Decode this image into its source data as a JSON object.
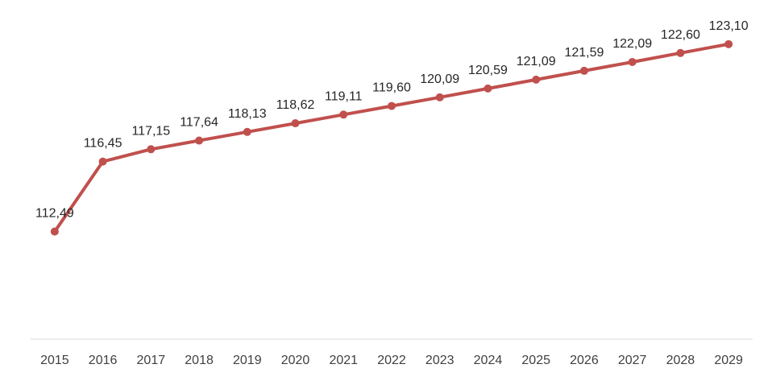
{
  "chart_data": {
    "type": "line",
    "title": "",
    "xlabel": "",
    "ylabel": "",
    "categories": [
      "2015",
      "2016",
      "2017",
      "2018",
      "2019",
      "2020",
      "2021",
      "2022",
      "2023",
      "2024",
      "2025",
      "2026",
      "2027",
      "2028",
      "2029"
    ],
    "series": [
      {
        "values": [
          112.49,
          116.45,
          117.15,
          117.64,
          118.13,
          118.62,
          119.11,
          119.6,
          120.09,
          120.59,
          121.09,
          121.59,
          122.09,
          122.6,
          123.1
        ],
        "labels": [
          "112,49",
          "116,45",
          "117,15",
          "117,64",
          "118,13",
          "118,62",
          "119,11",
          "119,60",
          "120,09",
          "120,59",
          "121,09",
          "121,59",
          "122,09",
          "122,60",
          "123,10"
        ],
        "color": "#C0504D"
      }
    ],
    "ylim": [
      106.4,
      125.6
    ],
    "y_axis_visible": false,
    "grid": false,
    "legend": "none",
    "data_labels": true,
    "axis_line_color": "#D9D9D9"
  }
}
